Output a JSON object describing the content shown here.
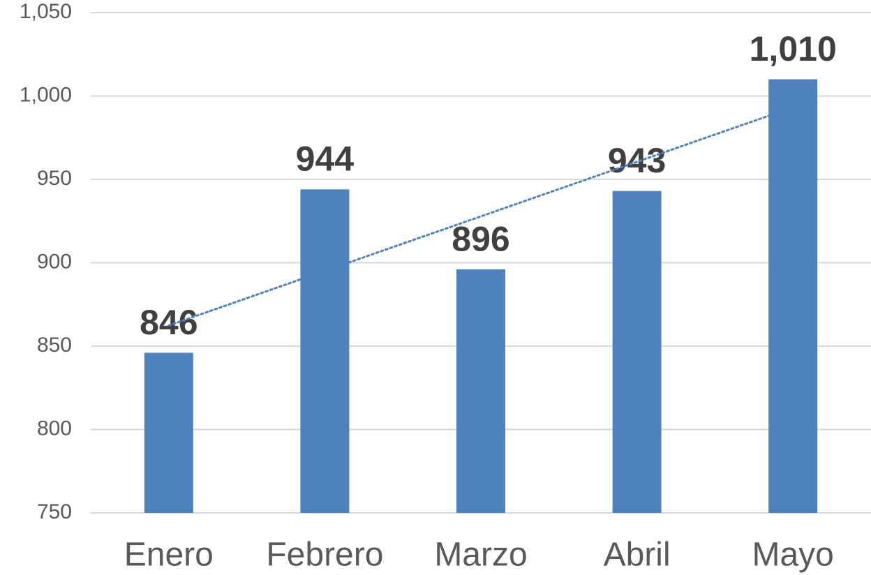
{
  "chart_data": {
    "type": "bar",
    "categories": [
      "Enero",
      "Febrero",
      "Marzo",
      "Abril",
      "Mayo"
    ],
    "values": [
      846,
      944,
      896,
      943,
      1010
    ],
    "value_labels": [
      "846",
      "944",
      "896",
      "943",
      "1,010"
    ],
    "color": "#4f81bd",
    "ylim": [
      750,
      1050
    ],
    "yticks": [
      750,
      800,
      850,
      900,
      950,
      {
        "value": 1000,
        "label": "1,000"
      },
      {
        "value": 1050,
        "label": "1,050"
      }
    ],
    "grid": true,
    "trendline": {
      "type": "linear",
      "color": "#4f81bd",
      "style": "dotted"
    }
  }
}
